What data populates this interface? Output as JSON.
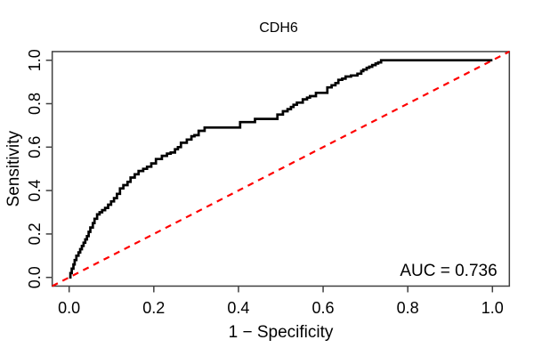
{
  "figure": {
    "title": "CDH6",
    "auc_text": "AUC = 0.736"
  },
  "chart_data": {
    "type": "line",
    "subtype": "roc-curve",
    "title": "CDH6",
    "xlabel": "1 − Specificity",
    "ylabel": "Sensitivity",
    "xlim": [
      0.0,
      1.0
    ],
    "ylim": [
      0.0,
      1.0
    ],
    "x_ticks": [
      "0.0",
      "0.2",
      "0.4",
      "0.6",
      "0.8",
      "1.0"
    ],
    "y_ticks": [
      "0.0",
      "0.2",
      "0.4",
      "0.6",
      "0.8",
      "1.0"
    ],
    "grid": false,
    "legend": false,
    "auc": 0.736,
    "annotation": {
      "text": "AUC = 0.736",
      "position": "bottom-right"
    },
    "reference_line": {
      "name": "chance-diagonal",
      "from": [
        0.0,
        0.0
      ],
      "to": [
        1.0,
        1.0
      ],
      "color": "#FF0000",
      "style": "dashed"
    },
    "series": [
      {
        "name": "ROC curve",
        "color": "#000000",
        "style": "step",
        "points": [
          [
            0.0,
            0.0
          ],
          [
            0.003,
            0.02
          ],
          [
            0.006,
            0.04
          ],
          [
            0.01,
            0.06
          ],
          [
            0.013,
            0.08
          ],
          [
            0.017,
            0.1
          ],
          [
            0.022,
            0.115
          ],
          [
            0.026,
            0.13
          ],
          [
            0.03,
            0.145
          ],
          [
            0.034,
            0.16
          ],
          [
            0.038,
            0.175
          ],
          [
            0.042,
            0.19
          ],
          [
            0.046,
            0.21
          ],
          [
            0.05,
            0.23
          ],
          [
            0.056,
            0.25
          ],
          [
            0.06,
            0.27
          ],
          [
            0.066,
            0.29
          ],
          [
            0.072,
            0.3
          ],
          [
            0.078,
            0.31
          ],
          [
            0.085,
            0.32
          ],
          [
            0.092,
            0.335
          ],
          [
            0.099,
            0.35
          ],
          [
            0.106,
            0.365
          ],
          [
            0.113,
            0.385
          ],
          [
            0.12,
            0.41
          ],
          [
            0.128,
            0.425
          ],
          [
            0.138,
            0.44
          ],
          [
            0.145,
            0.46
          ],
          [
            0.155,
            0.475
          ],
          [
            0.164,
            0.49
          ],
          [
            0.175,
            0.5
          ],
          [
            0.184,
            0.51
          ],
          [
            0.194,
            0.525
          ],
          [
            0.205,
            0.545
          ],
          [
            0.219,
            0.56
          ],
          [
            0.231,
            0.57
          ],
          [
            0.24,
            0.575
          ],
          [
            0.25,
            0.59
          ],
          [
            0.257,
            0.6
          ],
          [
            0.264,
            0.62
          ],
          [
            0.278,
            0.635
          ],
          [
            0.289,
            0.65
          ],
          [
            0.296,
            0.655
          ],
          [
            0.306,
            0.675
          ],
          [
            0.32,
            0.69
          ],
          [
            0.404,
            0.715
          ],
          [
            0.439,
            0.73
          ],
          [
            0.492,
            0.75
          ],
          [
            0.505,
            0.765
          ],
          [
            0.516,
            0.775
          ],
          [
            0.524,
            0.785
          ],
          [
            0.53,
            0.795
          ],
          [
            0.538,
            0.805
          ],
          [
            0.552,
            0.82
          ],
          [
            0.562,
            0.828
          ],
          [
            0.569,
            0.835
          ],
          [
            0.583,
            0.85
          ],
          [
            0.61,
            0.875
          ],
          [
            0.62,
            0.885
          ],
          [
            0.629,
            0.895
          ],
          [
            0.636,
            0.91
          ],
          [
            0.645,
            0.915
          ],
          [
            0.653,
            0.925
          ],
          [
            0.666,
            0.93
          ],
          [
            0.681,
            0.938
          ],
          [
            0.69,
            0.95
          ],
          [
            0.695,
            0.957
          ],
          [
            0.703,
            0.965
          ],
          [
            0.709,
            0.97
          ],
          [
            0.716,
            0.978
          ],
          [
            0.724,
            0.985
          ],
          [
            0.73,
            0.99
          ],
          [
            0.737,
            1.0
          ],
          [
            1.0,
            1.0
          ]
        ]
      }
    ]
  },
  "colors": {
    "curve": "#000000",
    "reference": "#FF0000",
    "axis": "#404040",
    "text": "#000000",
    "background": "#FFFFFF"
  }
}
